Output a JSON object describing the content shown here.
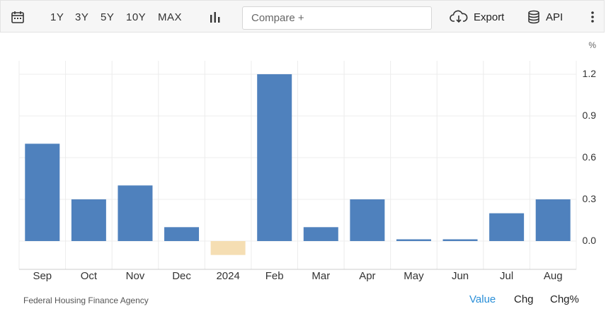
{
  "toolbar": {
    "calendar_icon": "calendar-icon",
    "ranges": [
      "1Y",
      "3Y",
      "5Y",
      "10Y",
      "MAX"
    ],
    "chart_type_icon": "bar-chart-icon",
    "compare_placeholder": "Compare +",
    "export_label": "Export",
    "export_icon": "cloud-download-icon",
    "api_label": "API",
    "api_icon": "database-icon",
    "more_icon": "vertical-dots-icon"
  },
  "chart_data": {
    "type": "bar",
    "categories": [
      "Sep",
      "Oct",
      "Nov",
      "Dec",
      "2024",
      "Feb",
      "Mar",
      "Apr",
      "May",
      "Jun",
      "Jul",
      "Aug"
    ],
    "values": [
      0.7,
      0.3,
      0.4,
      0.1,
      -0.1,
      1.2,
      0.1,
      0.3,
      0.01,
      0.01,
      0.2,
      0.3
    ],
    "unit": "%",
    "yticks": [
      "1.2",
      "0.9",
      "0.6",
      "0.3",
      "0.0"
    ],
    "ylim": [
      -0.2,
      1.35
    ],
    "y_axis_side": "right",
    "grid": true,
    "colors": {
      "positive": "#4f81bd",
      "negative": "#f5deb3"
    }
  },
  "footer": {
    "source": "Federal Housing Finance Agency",
    "value_label": "Value",
    "chg_label": "Chg",
    "chgpct_label": "Chg%",
    "active_color": "#2a8fd8"
  }
}
